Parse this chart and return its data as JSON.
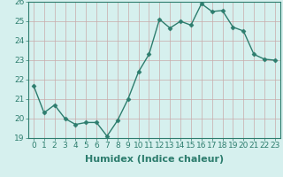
{
  "x": [
    0,
    1,
    2,
    3,
    4,
    5,
    6,
    7,
    8,
    9,
    10,
    11,
    12,
    13,
    14,
    15,
    16,
    17,
    18,
    19,
    20,
    21,
    22,
    23
  ],
  "y": [
    21.7,
    20.3,
    20.7,
    20.0,
    19.7,
    19.8,
    19.8,
    19.1,
    19.9,
    21.0,
    22.4,
    23.3,
    25.1,
    24.65,
    25.0,
    24.8,
    25.9,
    25.5,
    25.55,
    24.7,
    24.5,
    23.3,
    23.05,
    23.0
  ],
  "line_color": "#2d7d6e",
  "marker": "D",
  "marker_size": 2.5,
  "bg_color": "#d6f0ee",
  "grid_color": "#c8aaaa",
  "axes_color": "#2d7d6e",
  "xlabel": "Humidex (Indice chaleur)",
  "ylim": [
    19,
    26
  ],
  "xlim": [
    -0.5,
    23.5
  ],
  "yticks": [
    19,
    20,
    21,
    22,
    23,
    24,
    25,
    26
  ],
  "xticks": [
    0,
    1,
    2,
    3,
    4,
    5,
    6,
    7,
    8,
    9,
    10,
    11,
    12,
    13,
    14,
    15,
    16,
    17,
    18,
    19,
    20,
    21,
    22,
    23
  ],
  "tick_color": "#2d7d6e",
  "label_fontsize": 8,
  "tick_fontsize": 6.5,
  "linewidth": 1.0
}
